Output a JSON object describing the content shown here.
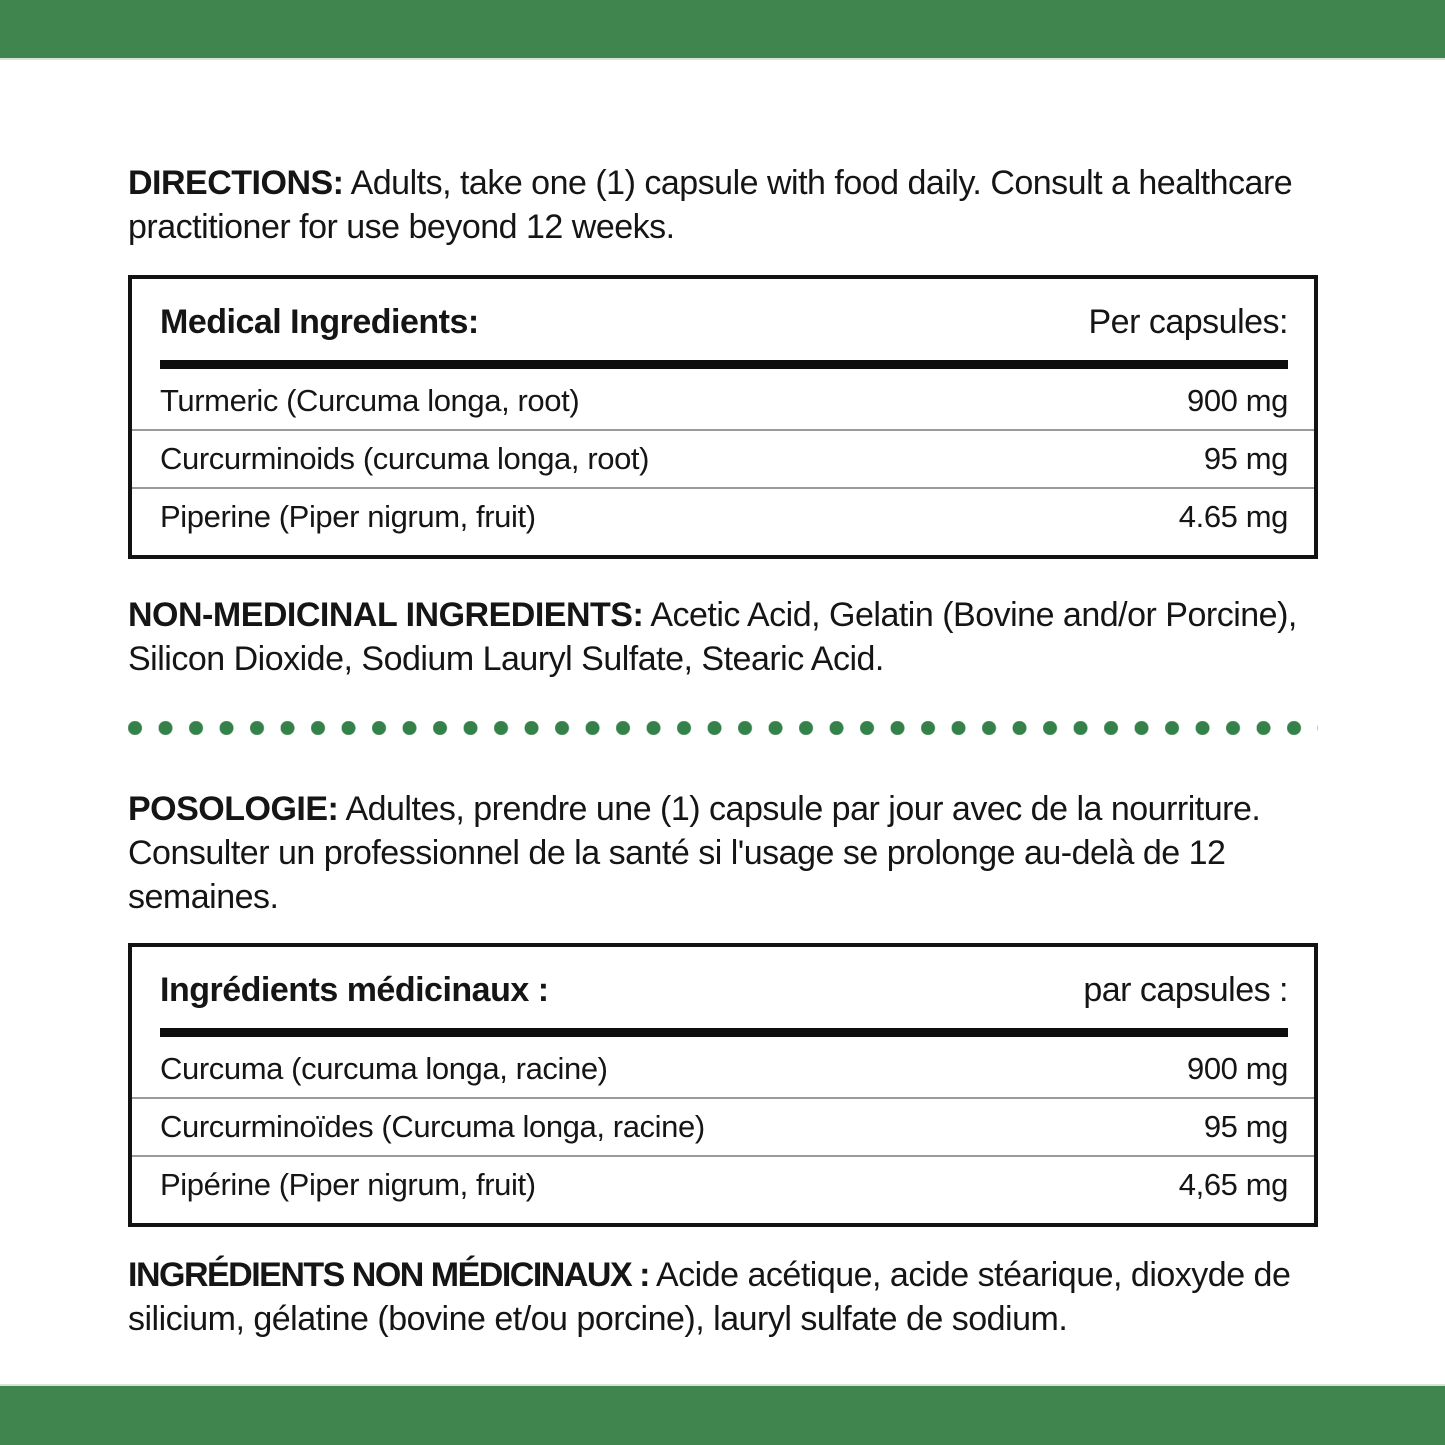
{
  "colors": {
    "green": "#40854E",
    "dot": "#35814A",
    "ink": "#151515",
    "sep": "#9b9b9b"
  },
  "sections": {
    "directions_en": {
      "label": "DIRECTIONS:",
      "text": "Adults, take one (1) capsule with food daily. Consult a healthcare practitioner for use beyond 12 weeks."
    },
    "medical_table_en": {
      "title": "Medical Ingredients:",
      "per_capsule": "Per capsules:",
      "rows": [
        {
          "name": "Turmeric (Curcuma longa, root)",
          "amount": "900 mg"
        },
        {
          "name": "Curcurminoids (curcuma longa, root)",
          "amount": "95 mg"
        },
        {
          "name": "Piperine (Piper nigrum, fruit)",
          "amount": "4.65 mg"
        }
      ]
    },
    "non_medicinal_en": {
      "label": "NON-MEDICINAL INGREDIENTS:",
      "text": "Acetic Acid, Gelatin (Bovine and/or Porcine), Silicon Dioxide, Sodium Lauryl Sulfate, Stearic Acid."
    },
    "posologie_fr": {
      "label": "POSOLOGIE:",
      "text": "Adultes, prendre une (1) capsule par jour avec de la nourriture. Consulter un professionnel de la santé si l'usage se prolonge au-delà de 12 semaines."
    },
    "medical_table_fr": {
      "title": "Ingrédients médicinaux :",
      "per_capsule": "par capsules :",
      "rows": [
        {
          "name": "Curcuma (curcuma longa, racine)",
          "amount": "900 mg"
        },
        {
          "name": "Curcurminoïdes (Curcuma longa, racine)",
          "amount": "95 mg"
        },
        {
          "name": "Pipérine (Piper nigrum, fruit)",
          "amount": "4,65 mg"
        }
      ]
    },
    "non_medicinal_fr": {
      "label": "INGRÉDIENTS NON MÉDICINAUX :",
      "text": "Acide acétique, acide stéarique, dioxyde de silicium, gélatine (bovine et/ou porcine), lauryl sulfate de sodium."
    }
  }
}
